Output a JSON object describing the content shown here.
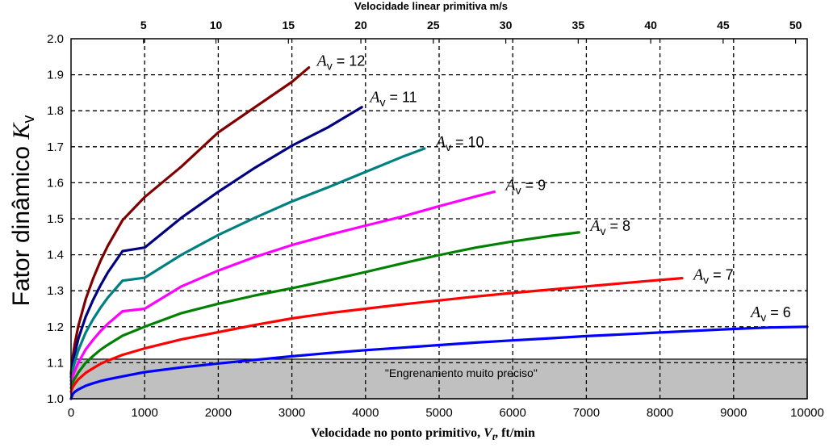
{
  "chart_data": {
    "type": "line",
    "xlabel": "Velocidade no ponto primitivo, Vt, ft/min",
    "xlabel_parts": [
      "Velocidade no ponto primitivo, ",
      "V",
      "t",
      ", ft/min"
    ],
    "ylabel": "Fator dinâmico Kv",
    "ylabel_parts": [
      "Fator dinâmico ",
      "K",
      "v"
    ],
    "x2label": "Velocidade linear primitiva m/s",
    "xlim": [
      0,
      10000
    ],
    "ylim": [
      1.0,
      2.0
    ],
    "x2lim": [
      0,
      50.8
    ],
    "xticks": [
      0,
      1000,
      2000,
      3000,
      4000,
      5000,
      6000,
      7000,
      8000,
      9000,
      10000
    ],
    "xtick_labels": [
      "0",
      "1000",
      "2000",
      "3000",
      "4000",
      "5000",
      "6000",
      "7000",
      "8000",
      "9000",
      "10000"
    ],
    "yticks": [
      1.0,
      1.1,
      1.2,
      1.3,
      1.4,
      1.5,
      1.6,
      1.7,
      1.8,
      1.9,
      2.0
    ],
    "ytick_labels": [
      "1.0",
      "1.1",
      "1.2",
      "1.3",
      "1.4",
      "1.5",
      "1.6",
      "1.7",
      "1.8",
      "1.9",
      "2.0"
    ],
    "x2ticks": [
      5,
      10,
      15,
      20,
      25,
      30,
      35,
      40,
      45,
      50
    ],
    "x2tick_labels": [
      "5",
      "10",
      "15",
      "20",
      "25",
      "30",
      "35",
      "40",
      "45",
      "50"
    ],
    "grid": true,
    "shaded_region": {
      "x": [
        0,
        10000
      ],
      "y": [
        1.0,
        1.11
      ],
      "label": "\"Engrenamento muito preciso\"",
      "color": "#c0c0c0"
    },
    "series": [
      {
        "name": "Av = 12",
        "label_main": "A",
        "label_sub": "v",
        "label_val": " = 12",
        "color": "#800000",
        "x": [
          0,
          25,
          50,
          100,
          200,
          300,
          400,
          500,
          700,
          1000,
          1500,
          2000,
          2500,
          3000,
          3230
        ],
        "y": [
          1.07,
          1.118,
          1.152,
          1.203,
          1.277,
          1.334,
          1.383,
          1.425,
          1.496,
          1.56,
          1.645,
          1.74,
          1.81,
          1.88,
          1.92
        ]
      },
      {
        "name": "Av = 11",
        "label_main": "A",
        "label_sub": "v",
        "label_val": " = 11",
        "color": "#000080",
        "x": [
          0,
          25,
          50,
          100,
          200,
          300,
          400,
          500,
          700,
          1000,
          1500,
          2000,
          2500,
          3000,
          3500,
          3950
        ],
        "y": [
          1.06,
          1.099,
          1.125,
          1.167,
          1.228,
          1.275,
          1.315,
          1.351,
          1.41,
          1.42,
          1.503,
          1.575,
          1.642,
          1.703,
          1.755,
          1.81
        ]
      },
      {
        "name": "Av = 10",
        "label_main": "A",
        "label_sub": "v",
        "label_val": " = 10",
        "color": "#008080",
        "x": [
          0,
          25,
          50,
          100,
          200,
          300,
          400,
          500,
          700,
          1000,
          1500,
          2000,
          2500,
          3000,
          3500,
          4000,
          4500,
          4800
        ],
        "y": [
          1.05,
          1.082,
          1.102,
          1.135,
          1.184,
          1.221,
          1.253,
          1.281,
          1.328,
          1.336,
          1.4,
          1.455,
          1.503,
          1.548,
          1.588,
          1.63,
          1.672,
          1.695
        ]
      },
      {
        "name": "Av = 9",
        "label_main": "A",
        "label_sub": "v",
        "label_val": " = 9",
        "color": "#ff00ff",
        "x": [
          0,
          25,
          50,
          100,
          200,
          300,
          400,
          500,
          700,
          1000,
          1500,
          2000,
          2500,
          3000,
          3500,
          4000,
          4500,
          5000,
          5500,
          5750
        ],
        "y": [
          1.04,
          1.063,
          1.077,
          1.101,
          1.137,
          1.164,
          1.188,
          1.208,
          1.243,
          1.25,
          1.312,
          1.356,
          1.394,
          1.427,
          1.455,
          1.481,
          1.506,
          1.535,
          1.562,
          1.575
        ]
      },
      {
        "name": "Av = 8",
        "label_main": "A",
        "label_sub": "v",
        "label_val": " = 8",
        "color": "#008000",
        "x": [
          0,
          25,
          50,
          100,
          200,
          300,
          400,
          500,
          700,
          1000,
          1500,
          2000,
          2500,
          3000,
          3500,
          4000,
          4500,
          5000,
          5500,
          6000,
          6500,
          6900
        ],
        "y": [
          1.03,
          1.046,
          1.056,
          1.073,
          1.1,
          1.119,
          1.136,
          1.15,
          1.175,
          1.2,
          1.238,
          1.264,
          1.287,
          1.307,
          1.329,
          1.352,
          1.376,
          1.399,
          1.42,
          1.437,
          1.452,
          1.462
        ]
      },
      {
        "name": "Av = 7",
        "label_main": "A",
        "label_sub": "v",
        "label_val": " = 7",
        "color": "#ff0000",
        "x": [
          0,
          25,
          50,
          100,
          200,
          300,
          400,
          500,
          700,
          1000,
          1500,
          2000,
          2500,
          3000,
          3500,
          4000,
          4500,
          5000,
          5500,
          6000,
          6500,
          7000,
          7500,
          8000,
          8300
        ],
        "y": [
          1.02,
          1.033,
          1.041,
          1.054,
          1.072,
          1.085,
          1.097,
          1.106,
          1.122,
          1.14,
          1.165,
          1.185,
          1.205,
          1.223,
          1.238,
          1.25,
          1.262,
          1.273,
          1.284,
          1.294,
          1.303,
          1.312,
          1.321,
          1.33,
          1.335
        ]
      },
      {
        "name": "Av = 6",
        "label_main": "A",
        "label_sub": "v",
        "label_val": " = 6",
        "color": "#0000ff",
        "x": [
          0,
          25,
          50,
          100,
          200,
          300,
          400,
          500,
          700,
          1000,
          1500,
          2000,
          2500,
          3000,
          3500,
          4000,
          4500,
          5000,
          5500,
          6000,
          6500,
          7000,
          7500,
          8000,
          8500,
          9000,
          9500,
          10000
        ],
        "y": [
          1.0,
          1.014,
          1.019,
          1.026,
          1.036,
          1.043,
          1.049,
          1.054,
          1.062,
          1.074,
          1.087,
          1.098,
          1.108,
          1.118,
          1.127,
          1.135,
          1.142,
          1.149,
          1.156,
          1.162,
          1.168,
          1.174,
          1.179,
          1.184,
          1.189,
          1.194,
          1.198,
          1.2
        ]
      }
    ]
  }
}
